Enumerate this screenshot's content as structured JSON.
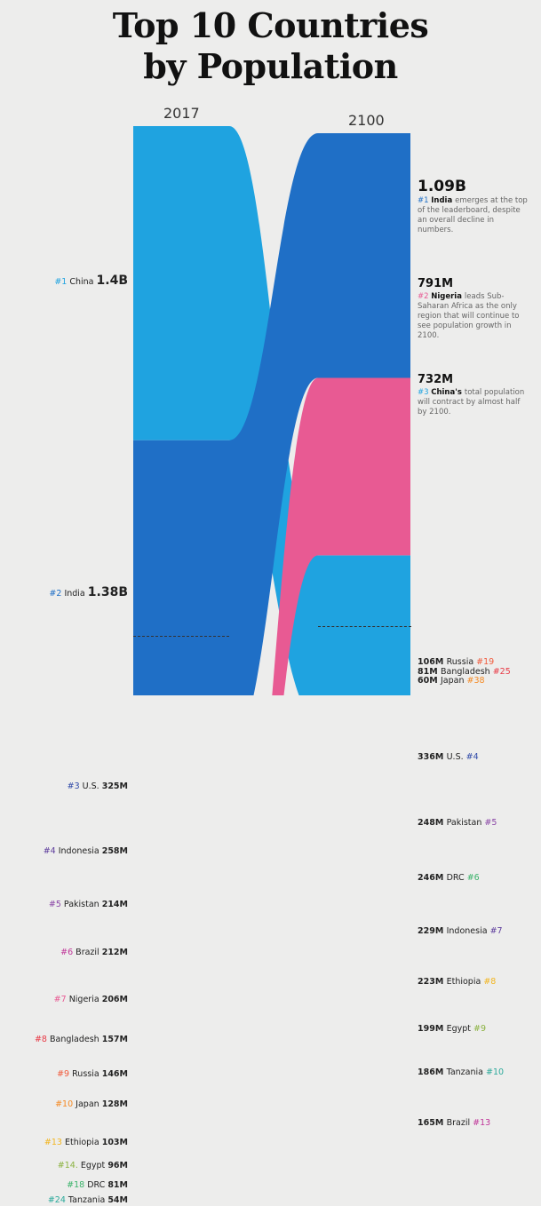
{
  "title_line1": "Top 10 Countries",
  "title_line2": "by Population",
  "year_left": "2017",
  "year_right": "2100",
  "left_labels": [
    {
      "rank": "#1",
      "country": "China",
      "value": "1.4B",
      "color": "#1fa3e0"
    },
    {
      "rank": "#2",
      "country": "India",
      "value": "1.38B",
      "color": "#1f6fc6"
    },
    {
      "rank": "#3",
      "country": "U.S.",
      "value": "325M",
      "color": "#2f4aa8"
    },
    {
      "rank": "#4",
      "country": "Indonesia",
      "value": "258M",
      "color": "#5d3c9c"
    },
    {
      "rank": "#5",
      "country": "Pakistan",
      "value": "214M",
      "color": "#8a46a6"
    },
    {
      "rank": "#6",
      "country": "Brazil",
      "value": "212M",
      "color": "#c0379a"
    },
    {
      "rank": "#7",
      "country": "Nigeria",
      "value": "206M",
      "color": "#e85a93"
    },
    {
      "rank": "#8",
      "country": "Bangladesh",
      "value": "157M",
      "color": "#e83a46"
    },
    {
      "rank": "#9",
      "country": "Russia",
      "value": "146M",
      "color": "#f05a3c"
    },
    {
      "rank": "#10",
      "country": "Japan",
      "value": "128M",
      "color": "#f58a24"
    },
    {
      "rank": "#13",
      "country": "Ethiopia",
      "value": "103M",
      "color": "#f2b51f"
    },
    {
      "rank": "#14.",
      "country": "Egypt",
      "value": "96M",
      "color": "#8bb240"
    },
    {
      "rank": "#18",
      "country": "DRC",
      "value": "81M",
      "color": "#3ab36a"
    },
    {
      "rank": "#24",
      "country": "Tanzania",
      "value": "54M",
      "color": "#2aa99a"
    }
  ],
  "right_labels": [
    {
      "value": "336M",
      "country": "U.S.",
      "rank": "#4",
      "color": "#2f4aa8"
    },
    {
      "value": "248M",
      "country": "Pakistan",
      "rank": "#5",
      "color": "#8a46a6"
    },
    {
      "value": "246M",
      "country": "DRC",
      "rank": "#6",
      "color": "#3ab36a"
    },
    {
      "value": "229M",
      "country": "Indonesia",
      "rank": "#7",
      "color": "#5d3c9c"
    },
    {
      "value": "223M",
      "country": "Ethiopia",
      "rank": "#8",
      "color": "#f2b51f"
    },
    {
      "value": "199M",
      "country": "Egypt",
      "rank": "#9",
      "color": "#8bb240"
    },
    {
      "value": "186M",
      "country": "Tanzania",
      "rank": "#10",
      "color": "#2aa99a"
    },
    {
      "value": "165M",
      "country": "Brazil",
      "rank": "#13",
      "color": "#c0379a"
    },
    {
      "value": "106M",
      "country": "Russia",
      "rank": "#19",
      "color": "#f05a3c"
    },
    {
      "value": "81M",
      "country": "Bangladesh",
      "rank": "#25",
      "color": "#e83a46"
    },
    {
      "value": "60M",
      "country": "Japan",
      "rank": "#38",
      "color": "#f58a24"
    }
  ],
  "callouts": [
    {
      "value": "1.09B",
      "rank": "#1",
      "country": "India",
      "text": "emerges at the top of the leaderboard, despite an overall decline in numbers.",
      "color": "#1f6fc6"
    },
    {
      "value": "791M",
      "rank": "#2",
      "country": "Nigeria",
      "text": "leads Sub-Saharan Africa as the only region that will continue to see population growth in 2100.",
      "color": "#e85a93"
    },
    {
      "value": "732M",
      "rank": "#3",
      "country": "China's",
      "text": "total population will contract by almost half by 2100.",
      "color": "#1fa3e0"
    }
  ],
  "chart_data": {
    "type": "sankey",
    "title": "Top 10 Countries by Population",
    "periods": [
      "2017",
      "2100"
    ],
    "series": [
      {
        "name": "China",
        "values_millions": [
          1400,
          732
        ],
        "ranks": [
          1,
          3
        ],
        "color": "#1fa3e0"
      },
      {
        "name": "India",
        "values_millions": [
          1380,
          1090
        ],
        "ranks": [
          2,
          1
        ],
        "color": "#1f6fc6"
      },
      {
        "name": "U.S.",
        "values_millions": [
          325,
          336
        ],
        "ranks": [
          3,
          4
        ],
        "color": "#2f4aa8"
      },
      {
        "name": "Indonesia",
        "values_millions": [
          258,
          229
        ],
        "ranks": [
          4,
          7
        ],
        "color": "#5d3c9c"
      },
      {
        "name": "Pakistan",
        "values_millions": [
          214,
          248
        ],
        "ranks": [
          5,
          5
        ],
        "color": "#8a46a6"
      },
      {
        "name": "Brazil",
        "values_millions": [
          212,
          165
        ],
        "ranks": [
          6,
          13
        ],
        "color": "#c0379a"
      },
      {
        "name": "Nigeria",
        "values_millions": [
          206,
          791
        ],
        "ranks": [
          7,
          2
        ],
        "color": "#e85a93"
      },
      {
        "name": "Bangladesh",
        "values_millions": [
          157,
          81
        ],
        "ranks": [
          8,
          25
        ],
        "color": "#e83a46"
      },
      {
        "name": "Russia",
        "values_millions": [
          146,
          106
        ],
        "ranks": [
          9,
          19
        ],
        "color": "#f05a3c"
      },
      {
        "name": "Japan",
        "values_millions": [
          128,
          60
        ],
        "ranks": [
          10,
          38
        ],
        "color": "#f58a24"
      },
      {
        "name": "Ethiopia",
        "values_millions": [
          103,
          223
        ],
        "ranks": [
          13,
          8
        ],
        "color": "#f2b51f"
      },
      {
        "name": "Egypt",
        "values_millions": [
          96,
          199
        ],
        "ranks": [
          14,
          9
        ],
        "color": "#8bb240"
      },
      {
        "name": "DRC",
        "values_millions": [
          81,
          246
        ],
        "ranks": [
          18,
          6
        ],
        "color": "#3ab36a"
      },
      {
        "name": "Tanzania",
        "values_millions": [
          54,
          186
        ],
        "ranks": [
          24,
          10
        ],
        "color": "#2aa99a"
      }
    ]
  }
}
